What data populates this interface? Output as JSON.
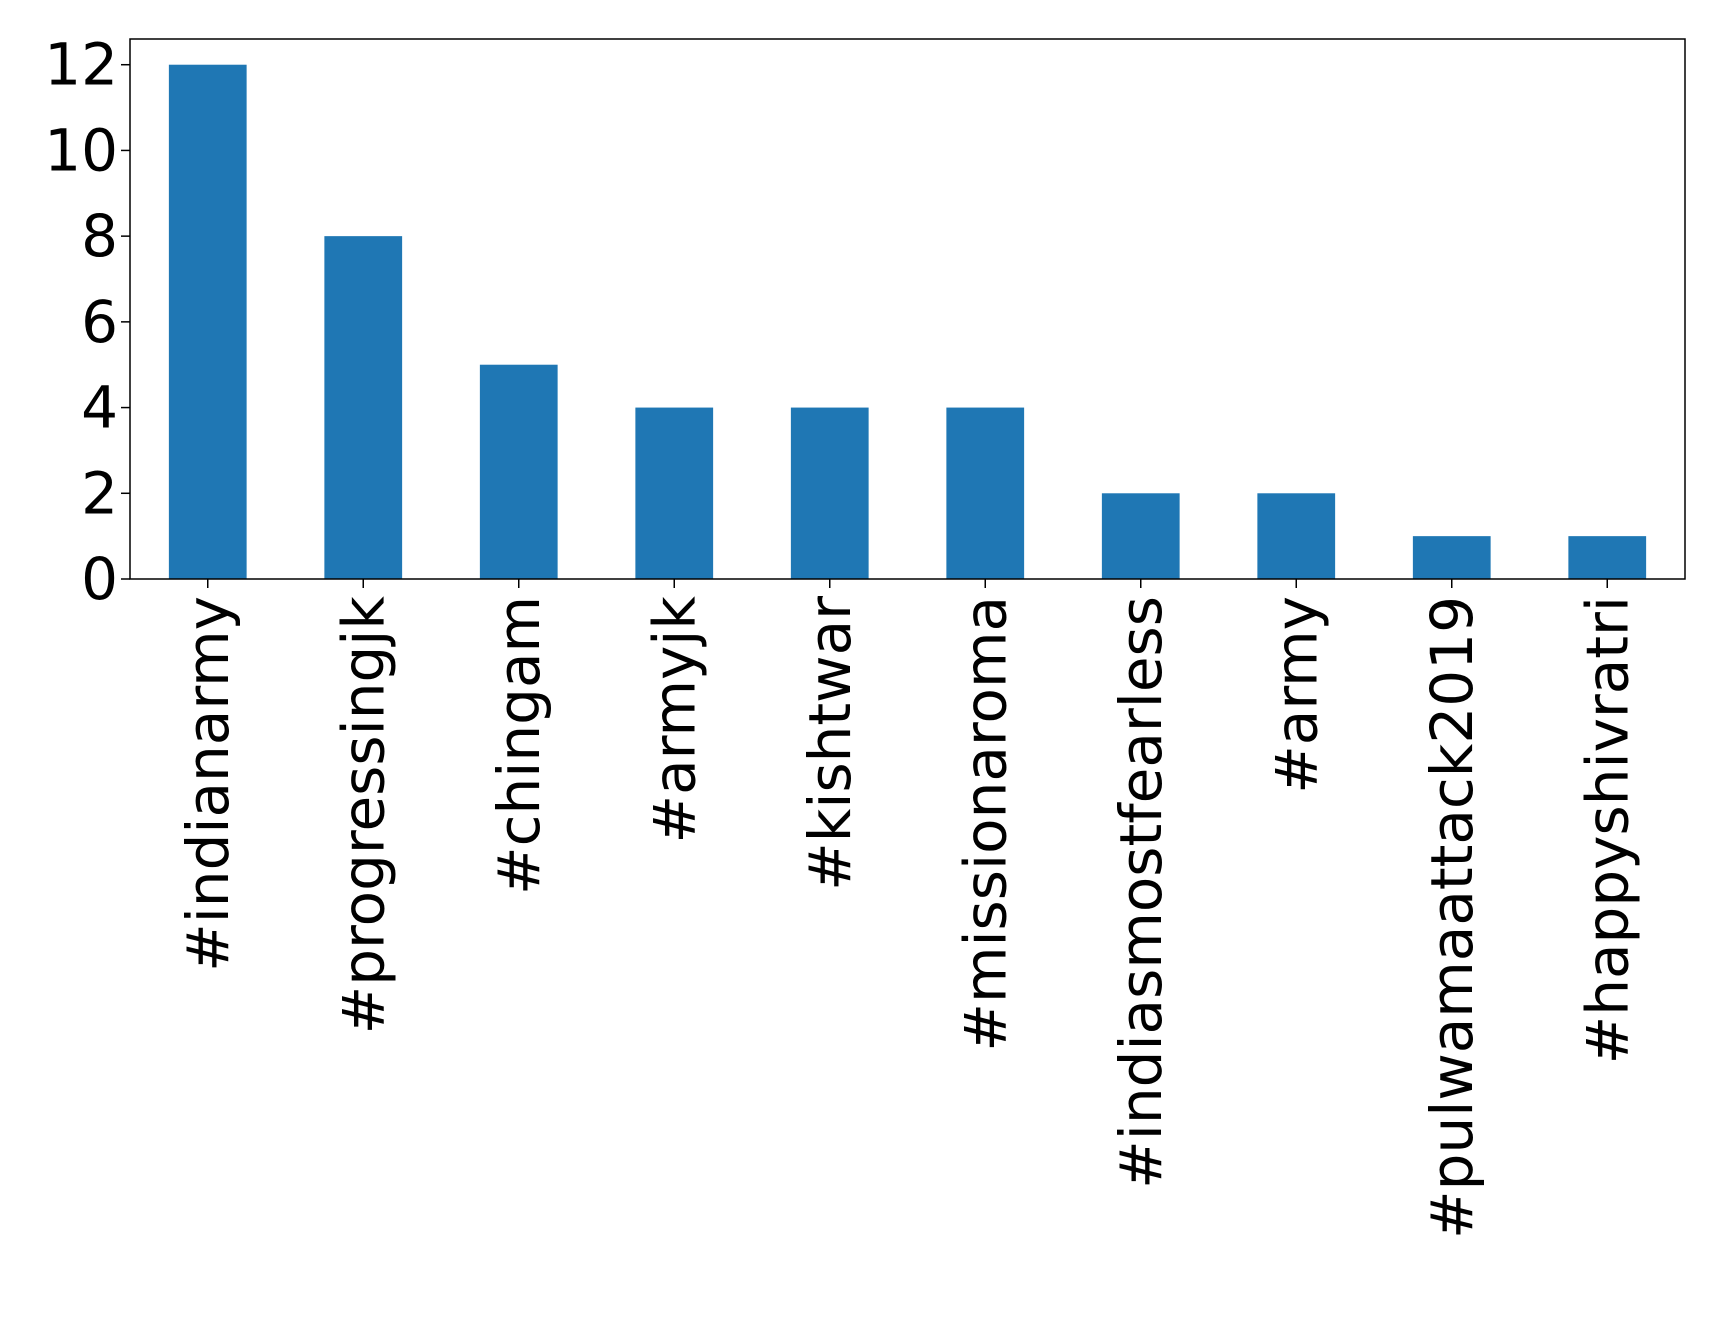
{
  "chart_data": {
    "type": "bar",
    "title": "",
    "xlabel": "",
    "ylabel": "",
    "categories": [
      "#indianarmy",
      "#progressingjk",
      "#chingam",
      "#armyjk",
      "#kishtwar",
      "#missionaroma",
      "#indiasmostfearless",
      "#army",
      "#pulwamaattack2019",
      "#happyshivratri"
    ],
    "values": [
      12,
      8,
      5,
      4,
      4,
      4,
      2,
      2,
      1,
      1
    ],
    "ylim": [
      0,
      12.6
    ],
    "yticks": [
      0,
      2,
      4,
      6,
      8,
      10,
      12
    ],
    "ytick_labels": [
      "0",
      "2",
      "4",
      "6",
      "8",
      "10",
      "12"
    ],
    "bar_color": "#1f77b4",
    "grid": false,
    "legend": "none",
    "x_tick_label_rotation": "vertical"
  }
}
